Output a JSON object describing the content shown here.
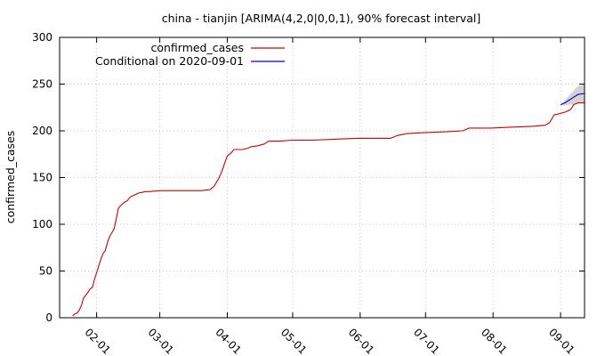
{
  "chart_data": {
    "type": "line",
    "title": "china - tianjin [ARIMA(4,2,0|0,0,1), 90% forecast interval]",
    "xlabel": "",
    "ylabel": "confirmed_cases",
    "ylim": [
      0,
      300
    ],
    "xlim": [
      "2020-01-15",
      "2020-09-12"
    ],
    "grid": true,
    "legend_position": "top-left",
    "y_ticks": [
      0,
      50,
      100,
      150,
      200,
      250,
      300
    ],
    "x_ticks": [
      {
        "date": "2020-02-01",
        "label": "02-01"
      },
      {
        "date": "2020-03-01",
        "label": "03-01"
      },
      {
        "date": "2020-04-01",
        "label": "04-01"
      },
      {
        "date": "2020-05-01",
        "label": "05-01"
      },
      {
        "date": "2020-06-01",
        "label": "06-01"
      },
      {
        "date": "2020-07-01",
        "label": "07-01"
      },
      {
        "date": "2020-08-01",
        "label": "08-01"
      },
      {
        "date": "2020-09-01",
        "label": "09-01"
      }
    ],
    "series": [
      {
        "name": "confirmed_cases",
        "color": "#cc0000",
        "points": [
          [
            "2020-01-21",
            2
          ],
          [
            "2020-01-22",
            4
          ],
          [
            "2020-01-23",
            5
          ],
          [
            "2020-01-24",
            8
          ],
          [
            "2020-01-25",
            13
          ],
          [
            "2020-01-26",
            21
          ],
          [
            "2020-01-27",
            24
          ],
          [
            "2020-01-28",
            27
          ],
          [
            "2020-01-29",
            31
          ],
          [
            "2020-01-30",
            32
          ],
          [
            "2020-01-31",
            41
          ],
          [
            "2020-02-01",
            48
          ],
          [
            "2020-02-02",
            56
          ],
          [
            "2020-02-03",
            63
          ],
          [
            "2020-02-04",
            69
          ],
          [
            "2020-02-05",
            72
          ],
          [
            "2020-02-06",
            81
          ],
          [
            "2020-02-07",
            87
          ],
          [
            "2020-02-08",
            91
          ],
          [
            "2020-02-09",
            95
          ],
          [
            "2020-02-10",
            106
          ],
          [
            "2020-02-11",
            117
          ],
          [
            "2020-02-12",
            120
          ],
          [
            "2020-02-13",
            122
          ],
          [
            "2020-02-14",
            124
          ],
          [
            "2020-02-15",
            125
          ],
          [
            "2020-02-16",
            128
          ],
          [
            "2020-02-17",
            130
          ],
          [
            "2020-02-18",
            131
          ],
          [
            "2020-02-19",
            132
          ],
          [
            "2020-02-20",
            133
          ],
          [
            "2020-02-21",
            134
          ],
          [
            "2020-02-22",
            134
          ],
          [
            "2020-02-23",
            135
          ],
          [
            "2020-02-24",
            135
          ],
          [
            "2020-02-25",
            135
          ],
          [
            "2020-03-01",
            136
          ],
          [
            "2020-03-10",
            136
          ],
          [
            "2020-03-20",
            136
          ],
          [
            "2020-03-24",
            137
          ],
          [
            "2020-03-25",
            139
          ],
          [
            "2020-03-26",
            141
          ],
          [
            "2020-03-27",
            145
          ],
          [
            "2020-03-28",
            149
          ],
          [
            "2020-03-29",
            154
          ],
          [
            "2020-03-30",
            160
          ],
          [
            "2020-03-31",
            167
          ],
          [
            "2020-04-01",
            173
          ],
          [
            "2020-04-02",
            175
          ],
          [
            "2020-04-03",
            177
          ],
          [
            "2020-04-04",
            180
          ],
          [
            "2020-04-06",
            180
          ],
          [
            "2020-04-08",
            180
          ],
          [
            "2020-04-10",
            181
          ],
          [
            "2020-04-12",
            183
          ],
          [
            "2020-04-15",
            184
          ],
          [
            "2020-04-18",
            186
          ],
          [
            "2020-04-20",
            189
          ],
          [
            "2020-04-25",
            189
          ],
          [
            "2020-05-01",
            190
          ],
          [
            "2020-05-10",
            190
          ],
          [
            "2020-05-20",
            191
          ],
          [
            "2020-05-31",
            192
          ],
          [
            "2020-06-10",
            192
          ],
          [
            "2020-06-15",
            192
          ],
          [
            "2020-06-18",
            195
          ],
          [
            "2020-06-22",
            197
          ],
          [
            "2020-06-30",
            198
          ],
          [
            "2020-07-10",
            199
          ],
          [
            "2020-07-18",
            200
          ],
          [
            "2020-07-21",
            203
          ],
          [
            "2020-07-31",
            203
          ],
          [
            "2020-08-10",
            204
          ],
          [
            "2020-08-20",
            205
          ],
          [
            "2020-08-25",
            206
          ],
          [
            "2020-08-27",
            209
          ],
          [
            "2020-08-28",
            213
          ],
          [
            "2020-08-29",
            217
          ],
          [
            "2020-08-31",
            218
          ],
          [
            "2020-09-03",
            220
          ],
          [
            "2020-09-05",
            222
          ],
          [
            "2020-09-06",
            224
          ],
          [
            "2020-09-07",
            228
          ],
          [
            "2020-09-09",
            230
          ],
          [
            "2020-09-12",
            230
          ]
        ]
      },
      {
        "name": "Conditional on 2020-09-01",
        "color": "#0000cc",
        "points": [
          [
            "2020-09-01",
            228
          ],
          [
            "2020-09-03",
            230
          ],
          [
            "2020-09-05",
            233
          ],
          [
            "2020-09-07",
            236
          ],
          [
            "2020-09-09",
            239
          ],
          [
            "2020-09-12",
            240
          ]
        ],
        "interval_lower": [
          228,
          227,
          228,
          228,
          229,
          229
        ],
        "interval_upper": [
          228,
          233,
          238,
          243,
          248,
          250
        ],
        "interval_color": "#c8c8c8"
      }
    ]
  }
}
